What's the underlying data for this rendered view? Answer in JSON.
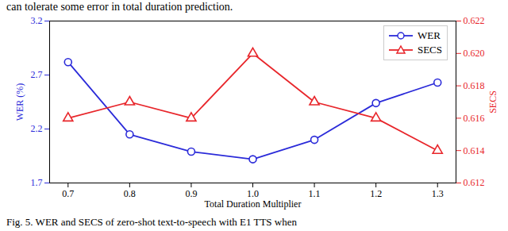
{
  "chart_data": {
    "type": "line",
    "annotations": [
      "can tolerate some error in total duration prediction.",
      "Fig. 5.   WER and SECS of zero-shot text-to-speech with E1 TTS when"
    ],
    "x_label": "Total Duration Multiplier",
    "y_label": "WER (%)",
    "y2_label": "SECS",
    "x": [
      0.7,
      0.8,
      0.9,
      1.0,
      1.1,
      1.2,
      1.3
    ],
    "xlim": [
      0.67,
      1.33
    ],
    "xticks": [
      0.7,
      0.8,
      0.9,
      {
        "value": 1,
        "label": "1.0"
      },
      1.1,
      1.2,
      1.3
    ],
    "ylim": [
      1.7,
      3.2
    ],
    "yticks": [
      1.7,
      2.2,
      2.7,
      3.2
    ],
    "y2lim": [
      0.612,
      0.622
    ],
    "y2ticks": [
      0.612,
      0.614,
      0.616,
      0.618,
      {
        "value": 0.62,
        "label": "0.620"
      },
      0.622
    ],
    "legend": "upper right",
    "grid": false,
    "series": [
      {
        "name": "WER",
        "color": "#2b2bd9",
        "marker": "circle",
        "line_style": "solid",
        "values": [
          2.82,
          2.15,
          1.99,
          1.92,
          2.1,
          2.44,
          2.63
        ]
      },
      {
        "name": "SECS",
        "color": "#e8262b",
        "marker": "triangle",
        "line_style": "solid",
        "axis": "y2",
        "values": [
          0.616,
          0.617,
          0.616,
          0.62,
          0.617,
          0.616,
          0.614
        ]
      }
    ]
  }
}
